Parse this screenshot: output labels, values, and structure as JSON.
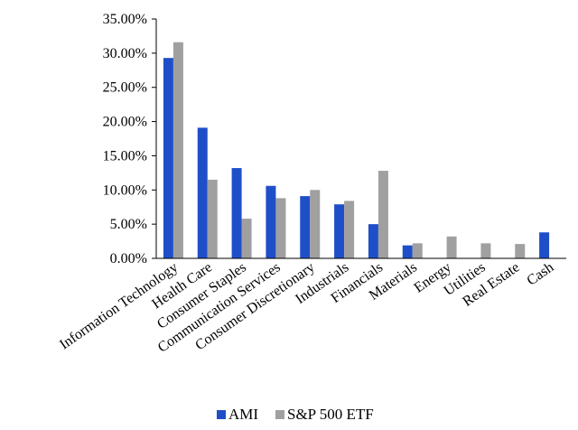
{
  "chart_data": {
    "type": "bar",
    "categories": [
      "Information Technology",
      "Health Care",
      "Consumer Staples",
      "Communication Services",
      "Consumer Discretionary",
      "Industrials",
      "Financials",
      "Materials",
      "Energy",
      "Utilities",
      "Real Estate",
      "Cash"
    ],
    "series": [
      {
        "name": "AMI",
        "color": "#1F4FC8",
        "values": [
          29.3,
          19.1,
          13.2,
          10.6,
          9.1,
          7.9,
          5.0,
          1.9,
          null,
          null,
          null,
          3.8
        ]
      },
      {
        "name": "S&P 500 ETF",
        "color": "#A0A0A0",
        "values": [
          31.6,
          11.5,
          5.8,
          8.8,
          10.0,
          8.4,
          12.8,
          2.2,
          3.2,
          2.2,
          2.1,
          null
        ]
      }
    ],
    "ylim": [
      0,
      35
    ],
    "yticks": [
      0,
      5,
      10,
      15,
      20,
      25,
      30,
      35
    ],
    "ytick_labels": [
      "0.00%",
      "5.00%",
      "10.00%",
      "15.00%",
      "20.00%",
      "25.00%",
      "30.00%",
      "35.00%"
    ],
    "title": "",
    "xlabel": "",
    "ylabel": "",
    "grid": false,
    "legend_position": "bottom"
  }
}
